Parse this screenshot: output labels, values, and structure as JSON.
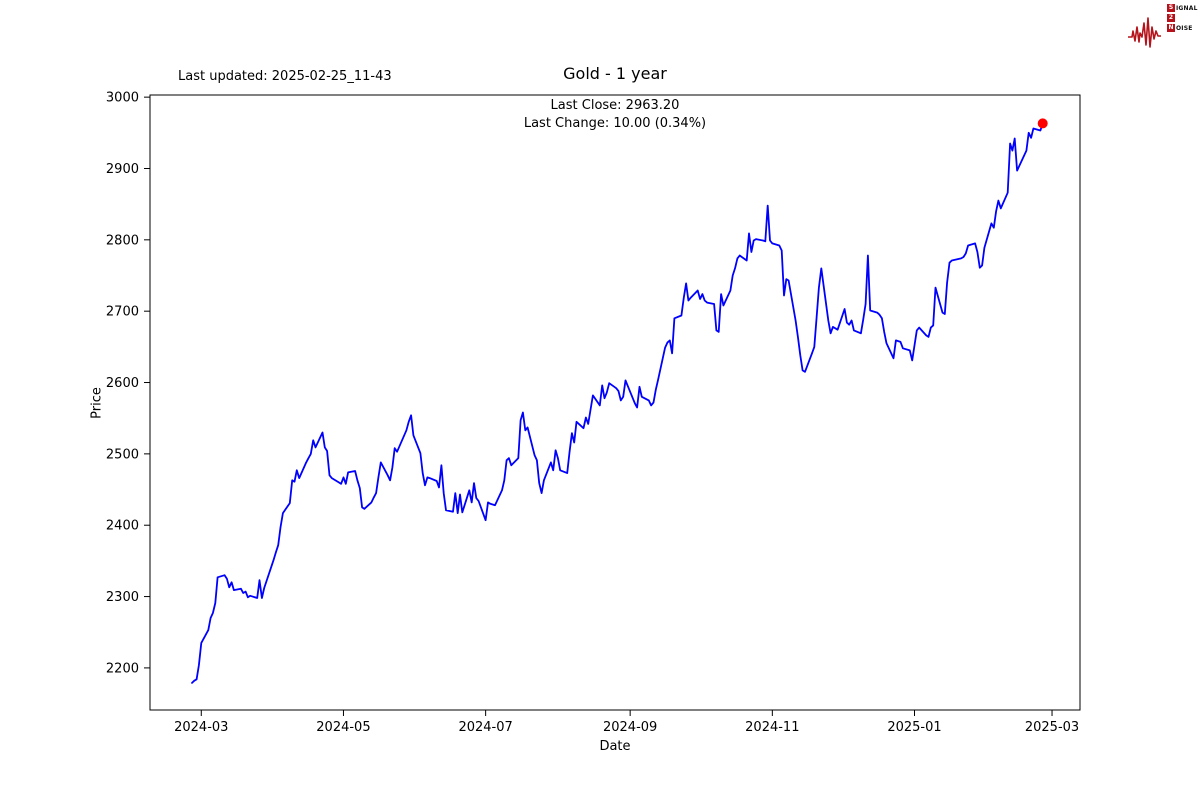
{
  "annotations": {
    "last_updated": "Last updated: 2025-02-25_11-43"
  },
  "logo": {
    "color": "#b5121b",
    "row1_initial": "S",
    "row1_rest": "IGNAL",
    "row2_initial": "2",
    "row2_rest": "",
    "row3_initial": "N",
    "row3_rest": "OISE"
  },
  "chart_data": {
    "type": "line",
    "title": "Gold - 1 year",
    "subtitle_close": "Last Close: 2963.20",
    "subtitle_change": "Last Change: 10.00 (0.34%)",
    "last_close": 2963.2,
    "last_change": 10.0,
    "last_change_pct": 0.34,
    "xlabel": "Date",
    "ylabel": "Price",
    "grid": false,
    "legend": null,
    "line_color": "#0000ff",
    "marker_color": "#ff0000",
    "ylim": [
      2141,
      3003
    ],
    "xlim": [
      "2024-02-08",
      "2025-03-13"
    ],
    "y_ticks": [
      2200,
      2300,
      2400,
      2500,
      2600,
      2700,
      2800,
      2900,
      3000
    ],
    "x_ticks": [
      {
        "label": "2024-03",
        "date": "2024-03-01"
      },
      {
        "label": "2024-05",
        "date": "2024-05-01"
      },
      {
        "label": "2024-07",
        "date": "2024-07-01"
      },
      {
        "label": "2024-09",
        "date": "2024-09-01"
      },
      {
        "label": "2024-11",
        "date": "2024-11-01"
      },
      {
        "label": "2025-01",
        "date": "2025-01-01"
      },
      {
        "label": "2025-03",
        "date": "2025-03-01"
      }
    ],
    "series": [
      {
        "name": "Gold",
        "color": "#0000ff",
        "points": [
          [
            "2024-02-26",
            2179
          ],
          [
            "2024-02-27",
            2182
          ],
          [
            "2024-02-28",
            2184
          ],
          [
            "2024-02-29",
            2204
          ],
          [
            "2024-03-01",
            2235
          ],
          [
            "2024-03-04",
            2253
          ],
          [
            "2024-03-05",
            2270
          ],
          [
            "2024-03-06",
            2277
          ],
          [
            "2024-03-07",
            2291
          ],
          [
            "2024-03-08",
            2327
          ],
          [
            "2024-03-11",
            2330
          ],
          [
            "2024-03-12",
            2325
          ],
          [
            "2024-03-13",
            2313
          ],
          [
            "2024-03-14",
            2320
          ],
          [
            "2024-03-15",
            2309
          ],
          [
            "2024-03-18",
            2311
          ],
          [
            "2024-03-19",
            2305
          ],
          [
            "2024-03-20",
            2307
          ],
          [
            "2024-03-21",
            2299
          ],
          [
            "2024-03-22",
            2301
          ],
          [
            "2024-03-25",
            2298
          ],
          [
            "2024-03-26",
            2323
          ],
          [
            "2024-03-27",
            2298
          ],
          [
            "2024-03-28",
            2312
          ],
          [
            "2024-04-01",
            2351
          ],
          [
            "2024-04-02",
            2362
          ],
          [
            "2024-04-03",
            2372
          ],
          [
            "2024-04-04",
            2397
          ],
          [
            "2024-04-05",
            2417
          ],
          [
            "2024-04-08",
            2431
          ],
          [
            "2024-04-09",
            2463
          ],
          [
            "2024-04-10",
            2461
          ],
          [
            "2024-04-11",
            2477
          ],
          [
            "2024-04-12",
            2466
          ],
          [
            "2024-04-15",
            2488
          ],
          [
            "2024-04-16",
            2494
          ],
          [
            "2024-04-17",
            2500
          ],
          [
            "2024-04-18",
            2519
          ],
          [
            "2024-04-19",
            2509
          ],
          [
            "2024-04-22",
            2530
          ],
          [
            "2024-04-23",
            2509
          ],
          [
            "2024-04-24",
            2504
          ],
          [
            "2024-04-25",
            2470
          ],
          [
            "2024-04-26",
            2466
          ],
          [
            "2024-04-29",
            2460
          ],
          [
            "2024-04-30",
            2458
          ],
          [
            "2024-05-01",
            2467
          ],
          [
            "2024-05-02",
            2458
          ],
          [
            "2024-05-03",
            2474
          ],
          [
            "2024-05-06",
            2476
          ],
          [
            "2024-05-07",
            2463
          ],
          [
            "2024-05-08",
            2452
          ],
          [
            "2024-05-09",
            2425
          ],
          [
            "2024-05-10",
            2423
          ],
          [
            "2024-05-13",
            2432
          ],
          [
            "2024-05-14",
            2439
          ],
          [
            "2024-05-15",
            2445
          ],
          [
            "2024-05-16",
            2467
          ],
          [
            "2024-05-17",
            2488
          ],
          [
            "2024-05-20",
            2470
          ],
          [
            "2024-05-21",
            2463
          ],
          [
            "2024-05-22",
            2481
          ],
          [
            "2024-05-23",
            2508
          ],
          [
            "2024-05-24",
            2503
          ],
          [
            "2024-05-28",
            2533
          ],
          [
            "2024-05-29",
            2545
          ],
          [
            "2024-05-30",
            2554
          ],
          [
            "2024-05-31",
            2526
          ],
          [
            "2024-06-03",
            2501
          ],
          [
            "2024-06-04",
            2473
          ],
          [
            "2024-06-05",
            2456
          ],
          [
            "2024-06-06",
            2467
          ],
          [
            "2024-06-07",
            2466
          ],
          [
            "2024-06-10",
            2462
          ],
          [
            "2024-06-11",
            2453
          ],
          [
            "2024-06-12",
            2484
          ],
          [
            "2024-06-13",
            2445
          ],
          [
            "2024-06-14",
            2421
          ],
          [
            "2024-06-17",
            2419
          ],
          [
            "2024-06-18",
            2445
          ],
          [
            "2024-06-19",
            2417
          ],
          [
            "2024-06-20",
            2443
          ],
          [
            "2024-06-21",
            2418
          ],
          [
            "2024-06-24",
            2449
          ],
          [
            "2024-06-25",
            2432
          ],
          [
            "2024-06-26",
            2459
          ],
          [
            "2024-06-27",
            2438
          ],
          [
            "2024-06-28",
            2434
          ],
          [
            "2024-07-01",
            2407
          ],
          [
            "2024-07-02",
            2432
          ],
          [
            "2024-07-03",
            2430
          ],
          [
            "2024-07-05",
            2428
          ],
          [
            "2024-07-08",
            2449
          ],
          [
            "2024-07-09",
            2463
          ],
          [
            "2024-07-10",
            2491
          ],
          [
            "2024-07-11",
            2494
          ],
          [
            "2024-07-12",
            2484
          ],
          [
            "2024-07-15",
            2494
          ],
          [
            "2024-07-16",
            2547
          ],
          [
            "2024-07-17",
            2558
          ],
          [
            "2024-07-18",
            2533
          ],
          [
            "2024-07-19",
            2537
          ],
          [
            "2024-07-22",
            2498
          ],
          [
            "2024-07-23",
            2491
          ],
          [
            "2024-07-24",
            2459
          ],
          [
            "2024-07-25",
            2445
          ],
          [
            "2024-07-26",
            2463
          ],
          [
            "2024-07-29",
            2488
          ],
          [
            "2024-07-30",
            2477
          ],
          [
            "2024-07-31",
            2505
          ],
          [
            "2024-08-01",
            2494
          ],
          [
            "2024-08-02",
            2477
          ],
          [
            "2024-08-05",
            2473
          ],
          [
            "2024-08-06",
            2502
          ],
          [
            "2024-08-07",
            2529
          ],
          [
            "2024-08-08",
            2516
          ],
          [
            "2024-08-09",
            2545
          ],
          [
            "2024-08-12",
            2536
          ],
          [
            "2024-08-13",
            2551
          ],
          [
            "2024-08-14",
            2542
          ],
          [
            "2024-08-16",
            2582
          ],
          [
            "2024-08-19",
            2568
          ],
          [
            "2024-08-20",
            2596
          ],
          [
            "2024-08-21",
            2578
          ],
          [
            "2024-08-22",
            2586
          ],
          [
            "2024-08-23",
            2599
          ],
          [
            "2024-08-26",
            2592
          ],
          [
            "2024-08-27",
            2588
          ],
          [
            "2024-08-28",
            2575
          ],
          [
            "2024-08-29",
            2580
          ],
          [
            "2024-08-30",
            2603
          ],
          [
            "2024-09-03",
            2571
          ],
          [
            "2024-09-04",
            2565
          ],
          [
            "2024-09-05",
            2594
          ],
          [
            "2024-09-06",
            2580
          ],
          [
            "2024-09-09",
            2575
          ],
          [
            "2024-09-10",
            2568
          ],
          [
            "2024-09-11",
            2572
          ],
          [
            "2024-09-12",
            2590
          ],
          [
            "2024-09-13",
            2604
          ],
          [
            "2024-09-16",
            2649
          ],
          [
            "2024-09-17",
            2656
          ],
          [
            "2024-09-18",
            2659
          ],
          [
            "2024-09-19",
            2641
          ],
          [
            "2024-09-20",
            2690
          ],
          [
            "2024-09-23",
            2694
          ],
          [
            "2024-09-24",
            2719
          ],
          [
            "2024-09-25",
            2739
          ],
          [
            "2024-09-26",
            2715
          ],
          [
            "2024-09-27",
            2719
          ],
          [
            "2024-09-30",
            2729
          ],
          [
            "2024-10-01",
            2717
          ],
          [
            "2024-10-02",
            2724
          ],
          [
            "2024-10-03",
            2715
          ],
          [
            "2024-10-04",
            2712
          ],
          [
            "2024-10-07",
            2710
          ],
          [
            "2024-10-08",
            2673
          ],
          [
            "2024-10-09",
            2671
          ],
          [
            "2024-10-10",
            2724
          ],
          [
            "2024-10-11",
            2708
          ],
          [
            "2024-10-14",
            2729
          ],
          [
            "2024-10-15",
            2750
          ],
          [
            "2024-10-16",
            2760
          ],
          [
            "2024-10-17",
            2774
          ],
          [
            "2024-10-18",
            2778
          ],
          [
            "2024-10-21",
            2771
          ],
          [
            "2024-10-22",
            2809
          ],
          [
            "2024-10-23",
            2783
          ],
          [
            "2024-10-24",
            2799
          ],
          [
            "2024-10-25",
            2801
          ],
          [
            "2024-10-28",
            2799
          ],
          [
            "2024-10-29",
            2798
          ],
          [
            "2024-10-30",
            2848
          ],
          [
            "2024-10-31",
            2799
          ],
          [
            "2024-11-01",
            2795
          ],
          [
            "2024-11-04",
            2792
          ],
          [
            "2024-11-05",
            2785
          ],
          [
            "2024-11-06",
            2722
          ],
          [
            "2024-11-07",
            2745
          ],
          [
            "2024-11-08",
            2743
          ],
          [
            "2024-11-11",
            2687
          ],
          [
            "2024-11-12",
            2663
          ],
          [
            "2024-11-13",
            2638
          ],
          [
            "2024-11-14",
            2617
          ],
          [
            "2024-11-15",
            2615
          ],
          [
            "2024-11-18",
            2641
          ],
          [
            "2024-11-19",
            2650
          ],
          [
            "2024-11-20",
            2691
          ],
          [
            "2024-11-21",
            2733
          ],
          [
            "2024-11-22",
            2760
          ],
          [
            "2024-11-25",
            2687
          ],
          [
            "2024-11-26",
            2669
          ],
          [
            "2024-11-27",
            2678
          ],
          [
            "2024-11-29",
            2674
          ],
          [
            "2024-12-02",
            2703
          ],
          [
            "2024-12-03",
            2684
          ],
          [
            "2024-12-04",
            2681
          ],
          [
            "2024-12-05",
            2687
          ],
          [
            "2024-12-06",
            2673
          ],
          [
            "2024-12-09",
            2669
          ],
          [
            "2024-12-10",
            2688
          ],
          [
            "2024-12-11",
            2710
          ],
          [
            "2024-12-12",
            2778
          ],
          [
            "2024-12-13",
            2701
          ],
          [
            "2024-12-16",
            2698
          ],
          [
            "2024-12-17",
            2695
          ],
          [
            "2024-12-18",
            2690
          ],
          [
            "2024-12-19",
            2671
          ],
          [
            "2024-12-20",
            2655
          ],
          [
            "2024-12-23",
            2634
          ],
          [
            "2024-12-24",
            2659
          ],
          [
            "2024-12-26",
            2657
          ],
          [
            "2024-12-27",
            2648
          ],
          [
            "2024-12-30",
            2645
          ],
          [
            "2024-12-31",
            2631
          ],
          [
            "2025-01-02",
            2673
          ],
          [
            "2025-01-03",
            2677
          ],
          [
            "2025-01-06",
            2666
          ],
          [
            "2025-01-07",
            2664
          ],
          [
            "2025-01-08",
            2677
          ],
          [
            "2025-01-09",
            2680
          ],
          [
            "2025-01-10",
            2733
          ],
          [
            "2025-01-13",
            2698
          ],
          [
            "2025-01-14",
            2696
          ],
          [
            "2025-01-15",
            2740
          ],
          [
            "2025-01-16",
            2768
          ],
          [
            "2025-01-17",
            2771
          ],
          [
            "2025-01-21",
            2774
          ],
          [
            "2025-01-22",
            2776
          ],
          [
            "2025-01-23",
            2781
          ],
          [
            "2025-01-24",
            2792
          ],
          [
            "2025-01-27",
            2795
          ],
          [
            "2025-01-28",
            2783
          ],
          [
            "2025-01-29",
            2761
          ],
          [
            "2025-01-30",
            2764
          ],
          [
            "2025-01-31",
            2789
          ],
          [
            "2025-02-03",
            2823
          ],
          [
            "2025-02-04",
            2817
          ],
          [
            "2025-02-05",
            2840
          ],
          [
            "2025-02-06",
            2855
          ],
          [
            "2025-02-07",
            2844
          ],
          [
            "2025-02-10",
            2866
          ],
          [
            "2025-02-11",
            2935
          ],
          [
            "2025-02-12",
            2925
          ],
          [
            "2025-02-13",
            2942
          ],
          [
            "2025-02-14",
            2897
          ],
          [
            "2025-02-18",
            2925
          ],
          [
            "2025-02-19",
            2950
          ],
          [
            "2025-02-20",
            2943
          ],
          [
            "2025-02-21",
            2956
          ],
          [
            "2025-02-24",
            2953.2
          ],
          [
            "2025-02-25",
            2963.2
          ]
        ]
      }
    ],
    "last_point": {
      "date": "2025-02-25",
      "price": 2963.2
    }
  }
}
